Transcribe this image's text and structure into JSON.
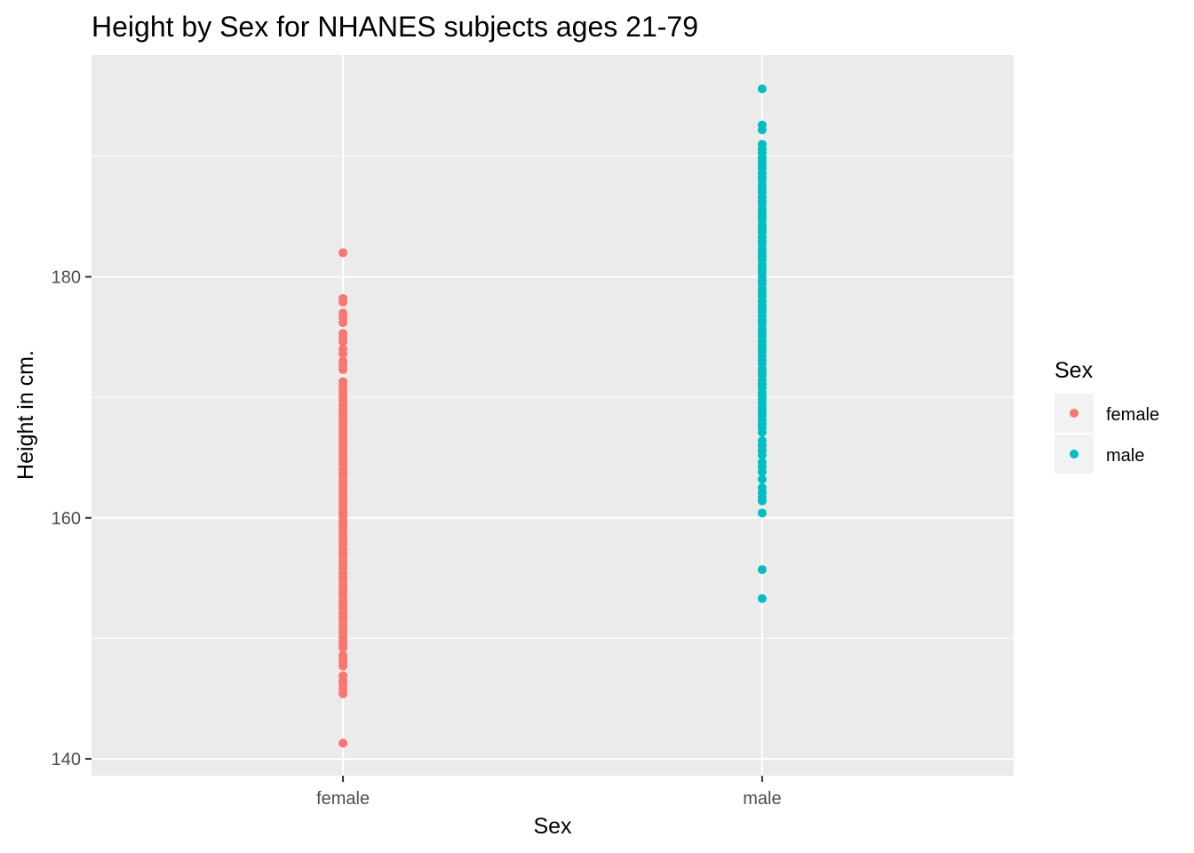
{
  "chart_data": {
    "type": "scatter",
    "title": "Height by Sex for NHANES subjects ages 21-79",
    "xlabel": "Sex",
    "ylabel": "Height in cm.",
    "categories": [
      "female",
      "male"
    ],
    "ylim": [
      138.6,
      198.4
    ],
    "yticks": [
      140,
      160,
      180
    ],
    "grid": true,
    "legend": {
      "title": "Sex",
      "placement": "right",
      "entries": [
        "female",
        "male"
      ]
    },
    "colors": {
      "female": "#F8766D",
      "male": "#00BFC4",
      "panel": "#EBEBEB",
      "grid": "#FFFFFF"
    },
    "series": [
      {
        "name": "female",
        "values": [
          141.3,
          145.4,
          145.8,
          146.2,
          146.5,
          146.9,
          147.7,
          148.0,
          148.3,
          148.6,
          149.2,
          149.5,
          149.8,
          150.1,
          150.5,
          150.8,
          151.1,
          151.5,
          151.8,
          152.1,
          152.5,
          152.8,
          153.1,
          153.5,
          153.8,
          154.1,
          154.4,
          154.8,
          155.1,
          155.4,
          155.8,
          156.1,
          156.4,
          156.8,
          157.1,
          157.4,
          157.8,
          158.1,
          158.4,
          158.7,
          159.1,
          159.4,
          159.7,
          160.1,
          160.4,
          160.7,
          161.1,
          161.4,
          161.7,
          162.0,
          162.4,
          162.7,
          163.0,
          163.4,
          163.7,
          164.0,
          164.4,
          164.7,
          165.0,
          165.4,
          165.7,
          166.0,
          166.3,
          166.7,
          167.0,
          167.3,
          167.7,
          168.0,
          168.3,
          168.7,
          169.0,
          169.3,
          169.7,
          170.0,
          170.3,
          170.6,
          171.0,
          171.3,
          172.3,
          172.7,
          173.0,
          173.6,
          174.0,
          174.6,
          175.0,
          175.3,
          176.2,
          176.6,
          177.0,
          177.9,
          178.2,
          182.0
        ]
      },
      {
        "name": "male",
        "values": [
          153.3,
          155.7,
          160.4,
          161.4,
          161.7,
          162.1,
          162.5,
          163.2,
          163.8,
          164.2,
          164.6,
          165.2,
          165.6,
          166.0,
          166.4,
          167.1,
          167.5,
          167.8,
          168.1,
          168.5,
          168.8,
          169.1,
          169.5,
          169.8,
          170.1,
          170.4,
          170.8,
          171.1,
          171.4,
          171.8,
          172.1,
          172.4,
          172.8,
          173.1,
          173.4,
          173.8,
          174.1,
          174.4,
          174.7,
          175.1,
          175.4,
          175.7,
          176.1,
          176.4,
          176.7,
          177.1,
          177.4,
          177.7,
          178.0,
          178.4,
          178.7,
          179.0,
          179.4,
          179.7,
          180.0,
          180.4,
          180.7,
          181.0,
          181.4,
          181.7,
          182.0,
          182.3,
          182.7,
          183.0,
          183.3,
          183.7,
          184.0,
          184.3,
          184.7,
          185.0,
          185.3,
          185.6,
          186.0,
          186.3,
          186.6,
          187.0,
          187.3,
          187.6,
          188.0,
          188.3,
          188.6,
          189.0,
          189.3,
          189.6,
          189.9,
          190.3,
          190.6,
          191.0,
          192.2,
          192.6,
          195.6
        ]
      }
    ]
  }
}
